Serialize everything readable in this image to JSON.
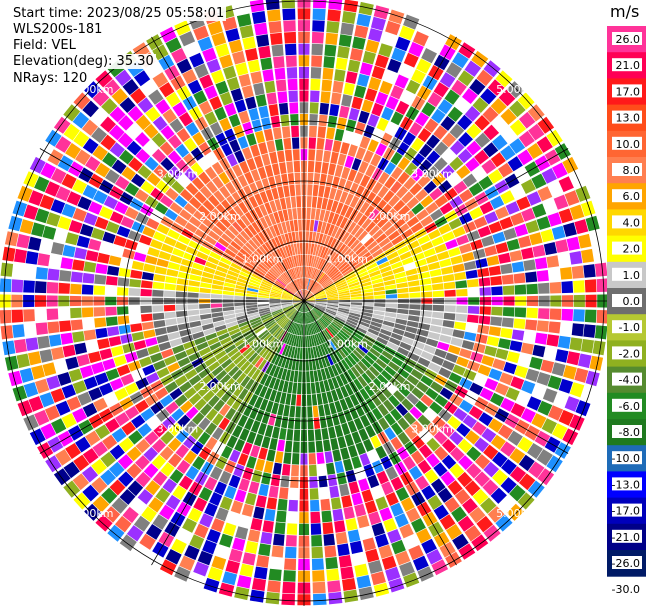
{
  "header": {
    "start_time": "Start time: 2023/08/25 05:58:01",
    "instrument": "WLS200s-181",
    "field": "Field: VEL",
    "elevation": "Elevation(deg): 35.30",
    "nrays": "NRays: 120"
  },
  "chart_data": {
    "type": "heatmap",
    "subtype": "polar-ppi",
    "field": "VEL",
    "unit": "m/s",
    "n_rays": 120,
    "elevation_deg": 35.3,
    "range_rings_km": [
      1.0,
      2.0,
      3.0,
      5.0
    ],
    "ring_labels": [
      "1.00km",
      "2.00km",
      "3.00km",
      "5.00km"
    ],
    "azimuth_lines_deg": [
      0,
      30,
      60,
      90,
      120,
      150,
      180,
      210,
      240,
      270,
      300,
      330
    ],
    "colorbar": {
      "ticks": [
        "26.0",
        "21.0",
        "17.0",
        "13.0",
        "10.0",
        "8.0",
        "6.0",
        "4.0",
        "2.0",
        "1.0",
        "0.0",
        "-1.0",
        "-2.0",
        "-4.0",
        "-6.0",
        "-8.0",
        "-10.0",
        "-13.0",
        "-17.0",
        "-21.0",
        "-26.0",
        "-30.0"
      ],
      "colors": [
        "#ff3399",
        "#ff0055",
        "#ff1a1a",
        "#ff4d1a",
        "#ff6633",
        "#ff7f50",
        "#ffa500",
        "#ffd700",
        "#ffff00",
        "#c8c8c8",
        "#6e6e6e",
        "#b5c832",
        "#8fb020",
        "#558b2f",
        "#228b22",
        "#1f7a1f",
        "#1e6bb8",
        "#0000ff",
        "#0000bb",
        "#000088",
        "#001a66"
      ]
    },
    "noise_palette": [
      "#ff3399",
      "#ff0055",
      "#ff1a1a",
      "#ff7f50",
      "#ffa500",
      "#ffff00",
      "#9b30ff",
      "#ff00ff",
      "#0000cd",
      "#00008b",
      "#1e90ff",
      "#228b22",
      "#8fb020",
      "#808080",
      "#ffffff",
      "#ff6347"
    ],
    "sectors": [
      {
        "azimuth_from": 300,
        "azimuth_to": 60,
        "value_range": [
          6,
          10
        ],
        "max_range_km": 3.0
      },
      {
        "azimuth_from": 60,
        "azimuth_to": 90,
        "value_range": [
          1,
          4
        ],
        "max_range_km": 3.0
      },
      {
        "azimuth_from": 90,
        "azimuth_to": 120,
        "value_range": [
          -1,
          1
        ],
        "max_range_km": 3.0
      },
      {
        "azimuth_from": 120,
        "azimuth_to": 150,
        "value_range": [
          -8,
          -4
        ],
        "max_range_km": 3.0
      },
      {
        "azimuth_from": 150,
        "azimuth_to": 210,
        "value_range": [
          -10,
          -8
        ],
        "max_range_km": 3.0
      },
      {
        "azimuth_from": 210,
        "azimuth_to": 250,
        "value_range": [
          -6,
          -2
        ],
        "max_range_km": 3.0
      },
      {
        "azimuth_from": 250,
        "azimuth_to": 275,
        "value_range": [
          -1,
          1
        ],
        "max_range_km": 3.0
      },
      {
        "azimuth_from": 275,
        "azimuth_to": 300,
        "value_range": [
          1,
          4
        ],
        "max_range_km": 3.0
      }
    ]
  }
}
